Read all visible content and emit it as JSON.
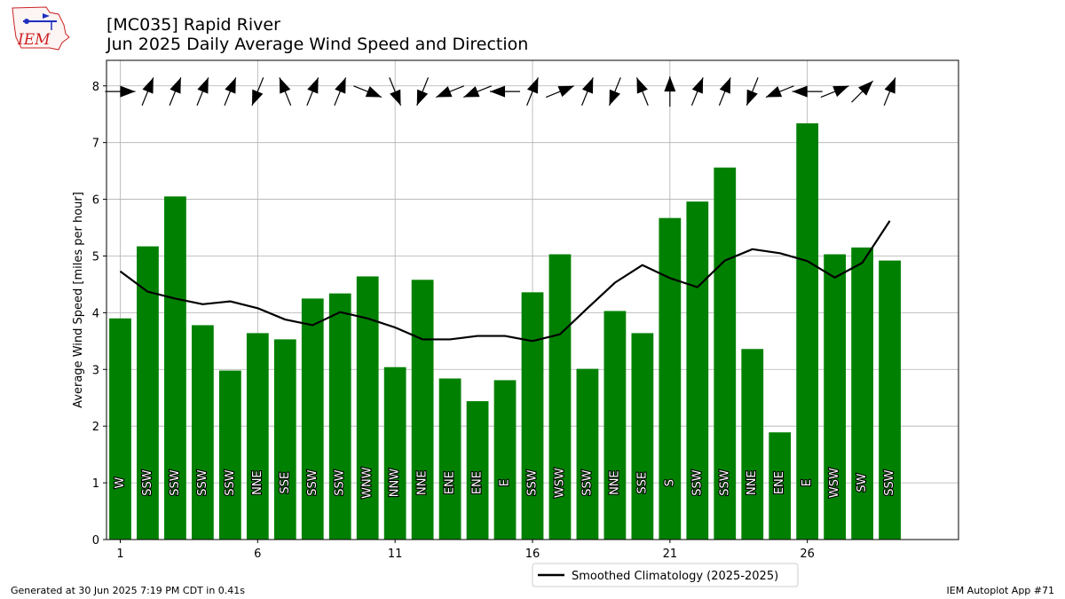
{
  "header": {
    "title_line1": "[MC035] Rapid River",
    "title_line2": "Jun 2025 Daily Average Wind Speed and Direction"
  },
  "logo": {
    "text": "IEM"
  },
  "footer": {
    "left": "Generated at 30 Jun 2025 7:19 PM CDT in 0.41s",
    "right": "IEM Autoplot App #71"
  },
  "colors": {
    "bars": "#008000",
    "climatology": "#000000",
    "grid": "#b0b0b0",
    "logo": "#cc2222"
  },
  "chart_data": {
    "type": "bar",
    "title": "[MC035] Rapid River\nJun 2025 Daily Average Wind Speed and Direction",
    "ylabel": "Average Wind Speed [miles per hour]",
    "xlabel": "",
    "ylim": [
      0,
      8.45
    ],
    "xlim": [
      0.5,
      31.5
    ],
    "yticks": [
      0,
      1,
      2,
      3,
      4,
      5,
      6,
      7,
      8
    ],
    "xticks": [
      1,
      6,
      11,
      16,
      21,
      26
    ],
    "grid": true,
    "legend": {
      "position": "below-center",
      "entries": [
        "Smoothed Climatology (2025-2025)"
      ]
    },
    "days": [
      1,
      2,
      3,
      4,
      5,
      6,
      7,
      8,
      9,
      10,
      11,
      12,
      13,
      14,
      15,
      16,
      17,
      18,
      19,
      20,
      21,
      22,
      23,
      24,
      25,
      26,
      27,
      28,
      29
    ],
    "wind_speed": [
      3.9,
      5.17,
      6.05,
      3.78,
      2.98,
      3.64,
      3.53,
      4.25,
      4.34,
      4.64,
      3.04,
      4.58,
      2.84,
      2.44,
      2.81,
      4.36,
      5.03,
      3.01,
      4.03,
      3.64,
      5.67,
      5.96,
      6.56,
      3.36,
      1.89,
      7.34,
      5.03,
      5.15,
      4.92
    ],
    "direction_labels": [
      "W",
      "SSW",
      "SSW",
      "SSW",
      "SSW",
      "NNE",
      "SSE",
      "SSW",
      "SSW",
      "WNW",
      "NNW",
      "NNE",
      "ENE",
      "ENE",
      "E",
      "SSW",
      "WSW",
      "SSW",
      "NNE",
      "SSE",
      "S",
      "SSW",
      "SSW",
      "NNE",
      "ENE",
      "E",
      "WSW",
      "SW",
      "SSW"
    ],
    "direction_degrees": [
      270,
      202,
      202,
      202,
      202,
      22,
      158,
      202,
      202,
      292,
      338,
      22,
      68,
      68,
      90,
      202,
      248,
      202,
      22,
      158,
      180,
      202,
      202,
      22,
      68,
      90,
      248,
      225,
      202
    ],
    "series": [
      {
        "name": "Smoothed Climatology (2025-2025)",
        "values": [
          4.73,
          4.37,
          4.25,
          4.15,
          4.2,
          4.08,
          3.88,
          3.78,
          4.01,
          3.9,
          3.74,
          3.53,
          3.53,
          3.59,
          3.59,
          3.5,
          3.62,
          4.08,
          4.53,
          4.84,
          4.61,
          4.45,
          4.92,
          5.12,
          5.05,
          4.91,
          4.62,
          4.88,
          5.62
        ]
      }
    ]
  }
}
